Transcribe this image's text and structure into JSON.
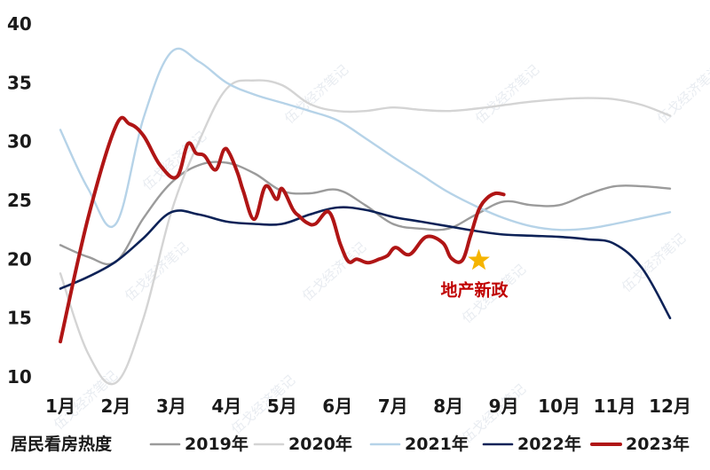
{
  "chart_data": {
    "type": "line",
    "ylim": [
      10,
      40
    ],
    "yticks": [
      "40",
      "35",
      "30",
      "25",
      "20",
      "15",
      "10"
    ],
    "categories": [
      "1月",
      "2月",
      "3月",
      "4月",
      "5月",
      "6月",
      "7月",
      "8月",
      "9月",
      "10月",
      "11月",
      "12月"
    ],
    "legend_title": "居民看房热度",
    "legend_position": "bottom",
    "grid": false,
    "series": [
      {
        "name": "2019年",
        "color": "#9b9b9b",
        "x": [
          1,
          1.5,
          2,
          2.5,
          3,
          3.5,
          4,
          4.5,
          5,
          5.5,
          6,
          6.5,
          7,
          7.5,
          8,
          8.5,
          9,
          9.5,
          10,
          10.5,
          11,
          11.5,
          12
        ],
        "values": [
          21.2,
          20.2,
          19.8,
          23.5,
          26.5,
          28,
          28.2,
          27.3,
          25.8,
          25.6,
          25.9,
          24.6,
          23,
          22.6,
          22.6,
          23.8,
          24.9,
          24.6,
          24.6,
          25.5,
          26.2,
          26.2,
          26
        ]
      },
      {
        "name": "2020年",
        "color": "#d4d4d4",
        "x": [
          1,
          1.5,
          2,
          2.5,
          3,
          3.5,
          4,
          4.5,
          5,
          5.5,
          6,
          6.5,
          7,
          7.5,
          8,
          8.5,
          9,
          9.5,
          10,
          10.5,
          11,
          11.5,
          12
        ],
        "values": [
          18.8,
          12,
          9.5,
          15,
          24,
          30,
          34.5,
          35.2,
          34.8,
          33.2,
          32.6,
          32.6,
          32.9,
          32.7,
          32.6,
          32.8,
          33.1,
          33.4,
          33.6,
          33.7,
          33.6,
          33.1,
          32.2
        ]
      },
      {
        "name": "2021年",
        "color": "#b6d3e8",
        "x": [
          1,
          1.5,
          2,
          2.5,
          3,
          3.5,
          4,
          4.5,
          5,
          5.5,
          6,
          6.5,
          7,
          7.5,
          8,
          8.5,
          9,
          9.5,
          10,
          10.5,
          11,
          11.5,
          12
        ],
        "values": [
          31,
          26,
          23,
          32,
          37.6,
          36.8,
          35,
          34,
          33.3,
          32.6,
          31.8,
          30.3,
          28.7,
          27.2,
          25.7,
          24.5,
          23.5,
          22.8,
          22.5,
          22.6,
          23,
          23.5,
          24
        ]
      },
      {
        "name": "2022年",
        "color": "#0d2257",
        "x": [
          1,
          1.5,
          2,
          2.5,
          3,
          3.5,
          4,
          4.5,
          5,
          5.5,
          6,
          6.5,
          7,
          7.5,
          8,
          8.5,
          9,
          9.5,
          10,
          10.5,
          11,
          11.5,
          12
        ],
        "values": [
          17.5,
          18.5,
          19.8,
          21.8,
          24,
          23.8,
          23.2,
          23,
          23,
          23.8,
          24.4,
          24.2,
          23.6,
          23.2,
          22.8,
          22.4,
          22.1,
          22,
          21.9,
          21.7,
          21.3,
          19.2,
          15
        ]
      },
      {
        "name": "2023年",
        "color": "#b01515",
        "x": [
          1,
          1.5,
          2,
          2.25,
          2.5,
          2.8,
          3.1,
          3.3,
          3.45,
          3.6,
          3.8,
          3.95,
          4.05,
          4.2,
          4.3,
          4.5,
          4.7,
          4.9,
          5.0,
          5.2,
          5.3,
          5.45,
          5.6,
          5.85,
          6.05,
          6.2,
          6.35,
          6.55,
          6.75,
          6.9,
          7.05,
          7.3,
          7.6,
          7.9,
          8.05,
          8.25,
          8.4,
          8.55,
          8.7,
          8.85,
          9.0
        ],
        "values": [
          13,
          23.5,
          31.3,
          31.5,
          30.5,
          28,
          27,
          29.8,
          29,
          28.8,
          27.6,
          29.3,
          29.0,
          27.3,
          25.8,
          23.4,
          26.2,
          25.1,
          26.0,
          24.2,
          23.7,
          23.1,
          23.0,
          24.0,
          21.3,
          19.8,
          20.0,
          19.7,
          20.0,
          20.3,
          21.0,
          20.4,
          21.9,
          21.4,
          20.1,
          19.9,
          22.0,
          24.2,
          25.2,
          25.6,
          25.5
        ]
      }
    ],
    "annotation": {
      "text": "地产新政",
      "x": 8.55,
      "y": 19.9,
      "marker": "star",
      "marker_color": "#f5b400",
      "text_color": "#c00000"
    },
    "watermark": "伍戈经济笔记"
  }
}
